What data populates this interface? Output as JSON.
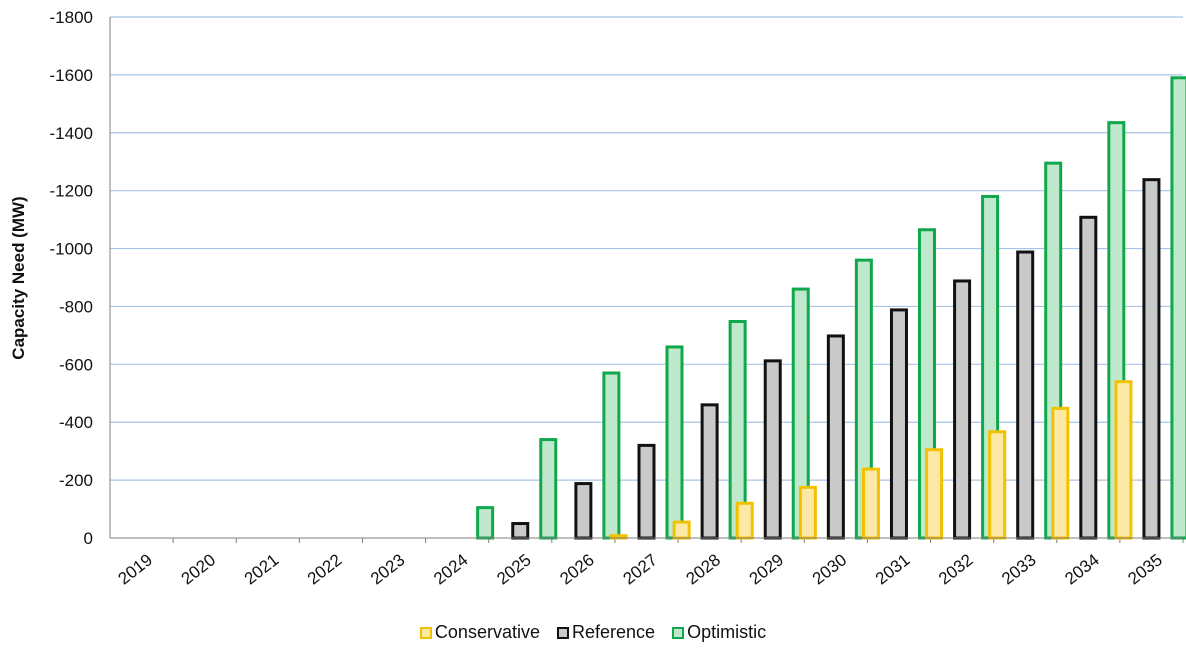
{
  "chart_data": {
    "type": "bar",
    "title": "",
    "xlabel": "",
    "ylabel": "Capacity Need (MW)",
    "ylim": [
      0,
      -1800
    ],
    "yticks": [
      0,
      -200,
      -400,
      -600,
      -800,
      -1000,
      -1200,
      -1400,
      -1600,
      -1800
    ],
    "grid": true,
    "legend_position": "bottom",
    "categories": [
      "2019",
      "2020",
      "2021",
      "2022",
      "2023",
      "2024",
      "2025",
      "2026",
      "2027",
      "2028",
      "2029",
      "2030",
      "2031",
      "2032",
      "2033",
      "2034",
      "2035"
    ],
    "series": [
      {
        "name": "Conservative",
        "color": "#f2c200",
        "fill": "#fde9a6",
        "values": [
          0,
          0,
          0,
          0,
          0,
          0,
          0,
          0,
          -8,
          -55,
          -120,
          -175,
          -238,
          -305,
          -367,
          -448,
          -540
        ]
      },
      {
        "name": "Reference",
        "color": "#111111",
        "fill": "#c9c9c9",
        "values": [
          0,
          0,
          0,
          0,
          0,
          0,
          -50,
          -188,
          -320,
          -460,
          -612,
          -698,
          -788,
          -888,
          -988,
          -1108,
          -1238
        ]
      },
      {
        "name": "Optimistic",
        "color": "#10a84c",
        "fill": "#bfe8cd",
        "values": [
          0,
          0,
          0,
          0,
          0,
          -105,
          -340,
          -570,
          -660,
          -748,
          -860,
          -960,
          -1065,
          -1180,
          -1295,
          -1435,
          -1590
        ]
      }
    ]
  },
  "colors": {
    "grid": "#a8c4e6",
    "axis": "#7f7f7f"
  }
}
